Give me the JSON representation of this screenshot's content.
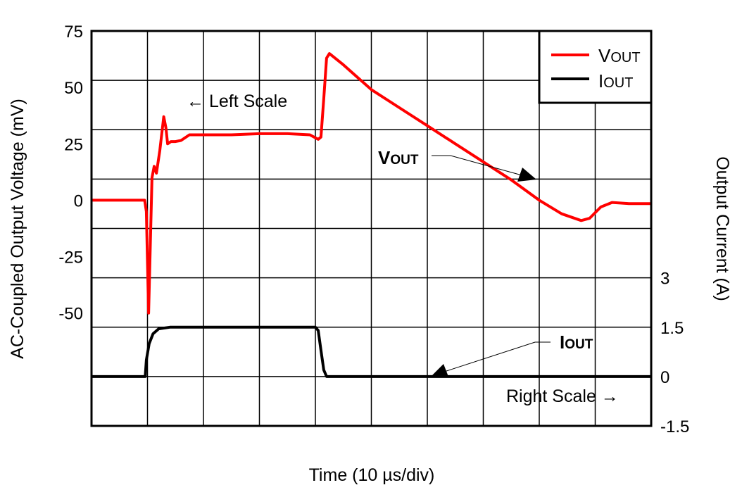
{
  "chart_data": {
    "type": "line",
    "title": "",
    "xlabel": "Time (10 µs/div)",
    "ylabel_left": "AC-Coupled Output Voltage (mV)",
    "ylabel_right": "Output Current (A)",
    "xlim": [
      0,
      100
    ],
    "x_divisions": 10,
    "ylim_left": [
      -100,
      75
    ],
    "ylim_right": [
      -1.5,
      10.5
    ],
    "y_divisions": 8,
    "grid": true,
    "left_ticks": [
      "75",
      "50",
      "25",
      "0",
      "-25",
      "-50"
    ],
    "left_tick_values": [
      75,
      50,
      25,
      0,
      -25,
      -50
    ],
    "right_ticks": [
      "3",
      "1.5",
      "0",
      "-1.5"
    ],
    "right_tick_values": [
      3,
      1.5,
      0,
      -1.5
    ],
    "legend": {
      "placement": "top-right",
      "entries": [
        {
          "main": "V",
          "sub": "OUT",
          "color": "#ff0000"
        },
        {
          "main": "I",
          "sub": "OUT",
          "color": "#000000"
        }
      ]
    },
    "annotations": {
      "left_scale": "← Left Scale",
      "right_scale": "Right Scale →",
      "vout_label": {
        "main": "V",
        "sub": "OUT"
      },
      "iout_label": {
        "main": "I",
        "sub": "OUT"
      }
    },
    "series": [
      {
        "name": "VOUT",
        "axis": "left",
        "color": "#ff0000",
        "x": [
          0,
          9.5,
          9.8,
          10.2,
          10.5,
          10.8,
          11.2,
          11.6,
          12.2,
          12.9,
          13.3,
          13.6,
          14.2,
          15,
          16,
          17.5,
          20,
          25,
          30,
          35,
          39,
          40.5,
          41,
          41.5,
          42,
          42.5,
          45,
          50,
          55,
          60,
          65,
          70,
          75,
          80,
          84,
          87.5,
          89,
          91,
          93,
          96,
          100
        ],
        "y": [
          0,
          0,
          -5,
          -50,
          -20,
          10,
          15,
          12,
          22,
          37,
          32,
          25,
          26,
          26,
          26.5,
          29,
          29,
          29,
          29.5,
          29.5,
          29,
          27,
          28,
          45,
          63,
          65,
          60,
          49,
          41,
          33,
          25,
          17,
          9,
          0,
          -6,
          -9,
          -8,
          -3,
          -1,
          -1.5,
          -1.5
        ]
      },
      {
        "name": "IOUT",
        "axis": "right",
        "color": "#000000",
        "x": [
          0,
          9.6,
          9.8,
          10.3,
          11,
          12,
          14,
          40,
          40.5,
          41,
          41.5,
          42,
          100
        ],
        "y": [
          0,
          0,
          0.5,
          1.0,
          1.3,
          1.45,
          1.5,
          1.5,
          1.4,
          0.8,
          0.2,
          0,
          0
        ]
      }
    ]
  }
}
